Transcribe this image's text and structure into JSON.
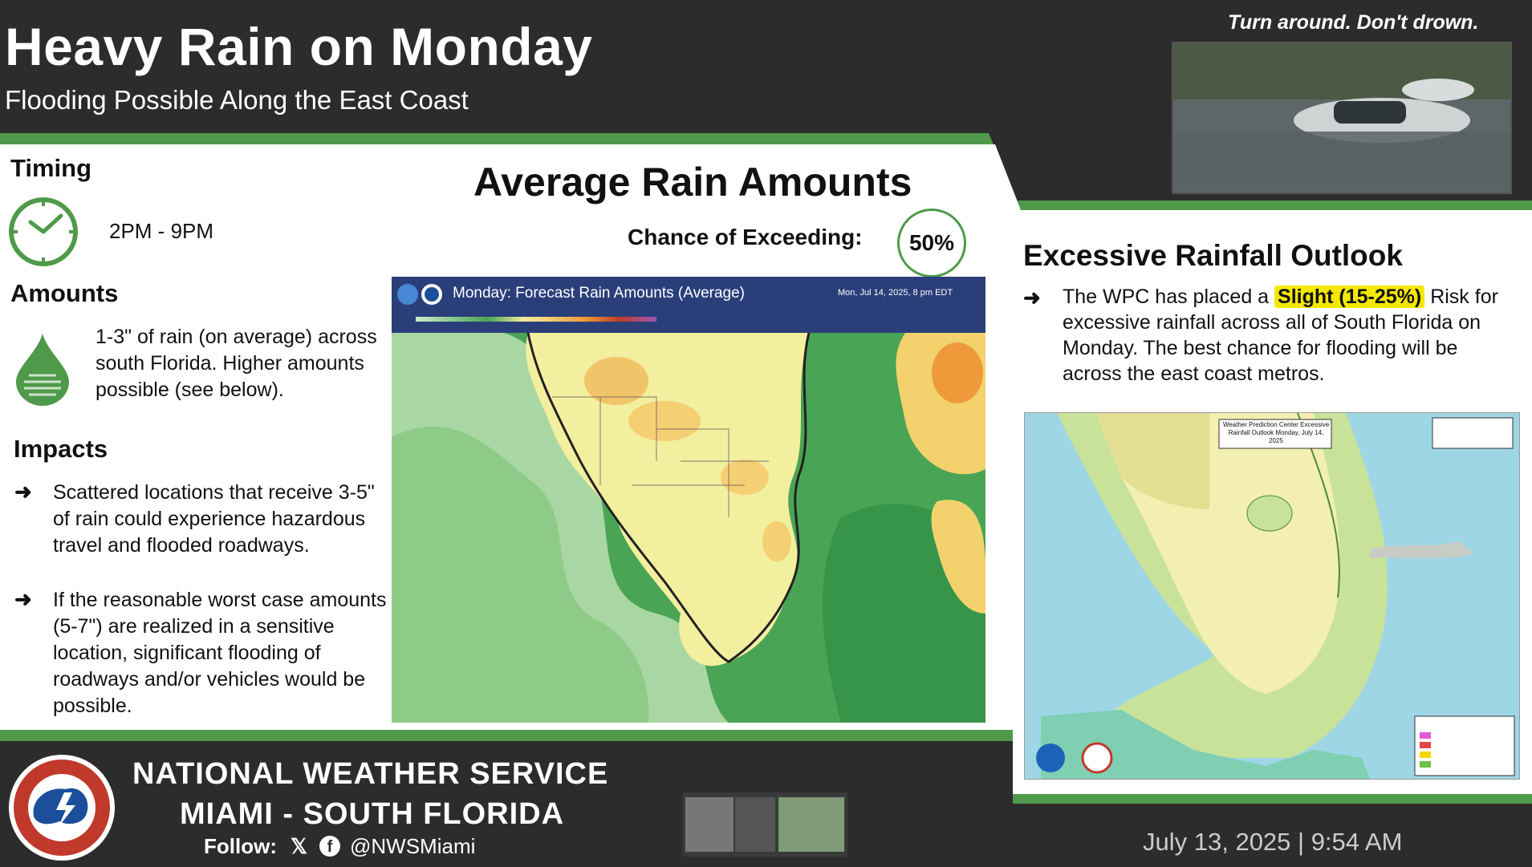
{
  "header": {
    "title": "Heavy Rain on Monday",
    "subtitle": "Flooding Possible Along the East Coast",
    "tagline": "Turn around. Don't drown."
  },
  "timing": {
    "label": "Timing",
    "time": "2PM - 9PM"
  },
  "amounts": {
    "label": "Amounts",
    "text": "1-3\" of rain (on average) across south Florida. Higher amounts possible (see below)."
  },
  "impacts": {
    "label": "Impacts",
    "items": [
      "Scattered locations that receive 3-5\" of rain could experience hazardous travel and flooded roadways.",
      "If the reasonable worst case amounts (5-7\") are realized in a sensitive location, significant flooding of roadways and/or vehicles would be possible."
    ]
  },
  "rain_map": {
    "title": "Average Rain Amounts",
    "chance_label": "Chance of Exceeding:",
    "chance_value": "50%",
    "map_header": "Monday: Forecast Rain Amounts (Average)",
    "map_date": "Mon, Jul 14, 2025, 8 pm EDT"
  },
  "ero": {
    "title": "Excessive Rainfall Outlook",
    "text_before": "The WPC has placed a",
    "risk": "Slight (15-25%)",
    "text_after": "Risk",
    "text_rest": "for excessive rainfall across all of South Florida on Monday. The best chance for flooding will be across the east coast metros.",
    "map_header": "Weather Prediction Center Excessive Rainfall Outlook Monday, July 14, 2025"
  },
  "footer": {
    "org_line1": "NATIONAL WEATHER SERVICE",
    "org_line2": "MIAMI - SOUTH FLORIDA",
    "follow": "Follow:",
    "handle": "@NWSMiami",
    "date": "July 13, 2025 | 9:54 AM"
  },
  "colors": {
    "accent_green": "#4f9a4a",
    "dark_bg": "#2c2c2c",
    "slight_yellow": "#f5e800"
  }
}
